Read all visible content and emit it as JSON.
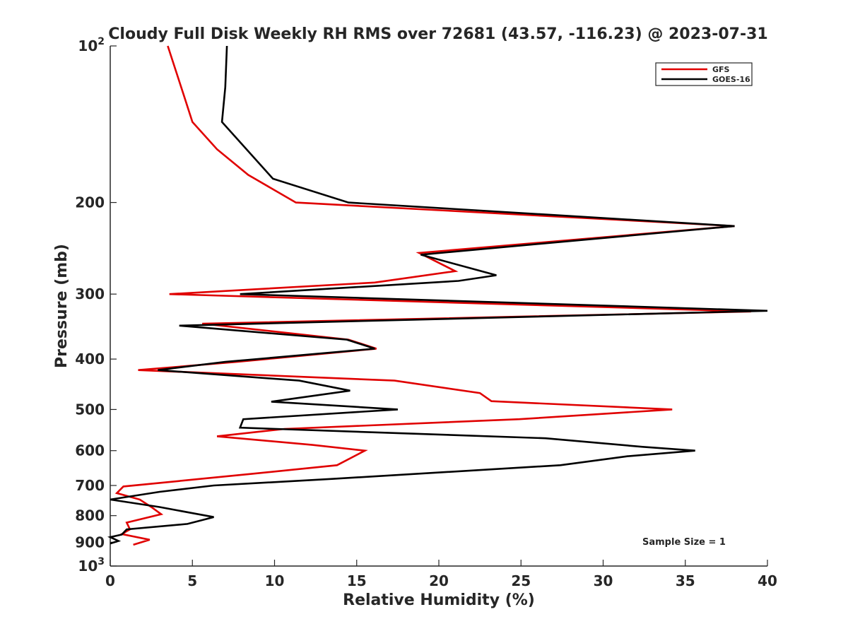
{
  "chart_data": {
    "type": "line",
    "title": "Cloudy Full Disk Weekly RH RMS over 72681 (43.57, -116.23) @ 2023-07-31",
    "xlabel": "Relative Humidity (%)",
    "ylabel": "Pressure (mb)",
    "xlim": [
      0,
      40
    ],
    "ylim": [
      1000,
      100
    ],
    "y_scale": "log",
    "y_reversed": true,
    "x_ticks": [
      0,
      5,
      10,
      15,
      20,
      25,
      30,
      35,
      40
    ],
    "y_ticks": [
      {
        "value": 100,
        "base": "10",
        "exp": "2"
      },
      {
        "value": 200,
        "label": "200"
      },
      {
        "value": 300,
        "label": "300"
      },
      {
        "value": 400,
        "label": "400"
      },
      {
        "value": 500,
        "label": "500"
      },
      {
        "value": 600,
        "label": "600"
      },
      {
        "value": 700,
        "label": "700"
      },
      {
        "value": 800,
        "label": "800"
      },
      {
        "value": 900,
        "label": "900"
      },
      {
        "value": 1000,
        "base": "10",
        "exp": "3"
      }
    ],
    "grid": false,
    "legend_position": "top-right",
    "series": [
      {
        "name": "GFS",
        "color": "#e00000",
        "points": [
          [
            3.5,
            100
          ],
          [
            4.5,
            125
          ],
          [
            5,
            140
          ],
          [
            6.5,
            158
          ],
          [
            8.4,
            177
          ],
          [
            11.3,
            200
          ],
          [
            38,
            222
          ],
          [
            18.8,
            250
          ],
          [
            21,
            271
          ],
          [
            16.1,
            285
          ],
          [
            3.6,
            300
          ],
          [
            39,
            324
          ],
          [
            5.6,
            342
          ],
          [
            14.5,
            367
          ],
          [
            16.2,
            382
          ],
          [
            7.7,
            405
          ],
          [
            1.7,
            420
          ],
          [
            17.3,
            440
          ],
          [
            22.5,
            465
          ],
          [
            23.2,
            482
          ],
          [
            34.2,
            500
          ],
          [
            24.9,
            522
          ],
          [
            10.6,
            545
          ],
          [
            6.5,
            563
          ],
          [
            12.3,
            585
          ],
          [
            15.5,
            600
          ],
          [
            13.8,
            640
          ],
          [
            8.6,
            665
          ],
          [
            0.8,
            703
          ],
          [
            0.4,
            724
          ],
          [
            1.8,
            745
          ],
          [
            2.5,
            770
          ],
          [
            3.1,
            795
          ],
          [
            1,
            825
          ],
          [
            1.2,
            850
          ],
          [
            0.7,
            868
          ],
          [
            2.4,
            890
          ],
          [
            1.4,
            910
          ]
        ]
      },
      {
        "name": "GOES-16",
        "color": "#000000",
        "points": [
          [
            7.1,
            100
          ],
          [
            7,
            120
          ],
          [
            6.8,
            140
          ],
          [
            9.9,
            180
          ],
          [
            14.5,
            200
          ],
          [
            38,
            222
          ],
          [
            18.9,
            252
          ],
          [
            23.5,
            276
          ],
          [
            21.2,
            283
          ],
          [
            7.9,
            300
          ],
          [
            40,
            323
          ],
          [
            4.2,
            345
          ],
          [
            14.4,
            367
          ],
          [
            16.1,
            382
          ],
          [
            7,
            405
          ],
          [
            2.9,
            420
          ],
          [
            11.5,
            440
          ],
          [
            14.6,
            460
          ],
          [
            9.8,
            483
          ],
          [
            17.5,
            500
          ],
          [
            8.1,
            522
          ],
          [
            7.9,
            542
          ],
          [
            26.5,
            568
          ],
          [
            32.4,
            590
          ],
          [
            35.6,
            600
          ],
          [
            31.5,
            615
          ],
          [
            27.4,
            640
          ],
          [
            13.5,
            680
          ],
          [
            6.3,
            700
          ],
          [
            3,
            720
          ],
          [
            0,
            745
          ],
          [
            3,
            770
          ],
          [
            4.9,
            790
          ],
          [
            6.3,
            805
          ],
          [
            4.7,
            830
          ],
          [
            1,
            850
          ],
          [
            0.7,
            870
          ],
          [
            0,
            880
          ],
          [
            0.5,
            895
          ],
          [
            0,
            905
          ]
        ]
      }
    ],
    "annotations": [
      "Sample Size = 1"
    ]
  }
}
